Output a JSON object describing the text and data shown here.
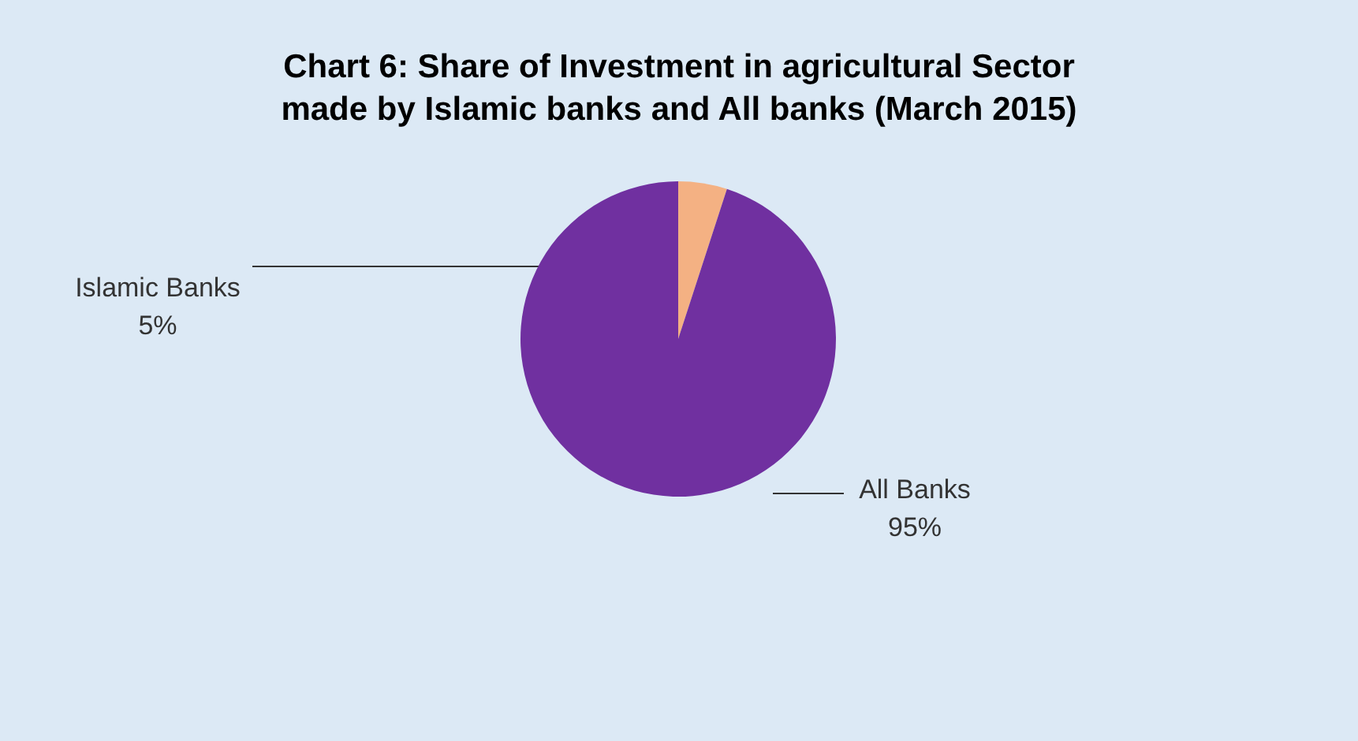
{
  "chart_data": {
    "type": "pie",
    "title": "Chart 6: Share of Investment in agricultural Sector made by Islamic banks and All banks (March 2015)",
    "categories": [
      "Islamic Banks",
      "All Banks"
    ],
    "values": [
      5,
      95
    ],
    "colors": [
      "#f4b183",
      "#7030a0"
    ],
    "value_labels": [
      "5%",
      "95%"
    ]
  }
}
